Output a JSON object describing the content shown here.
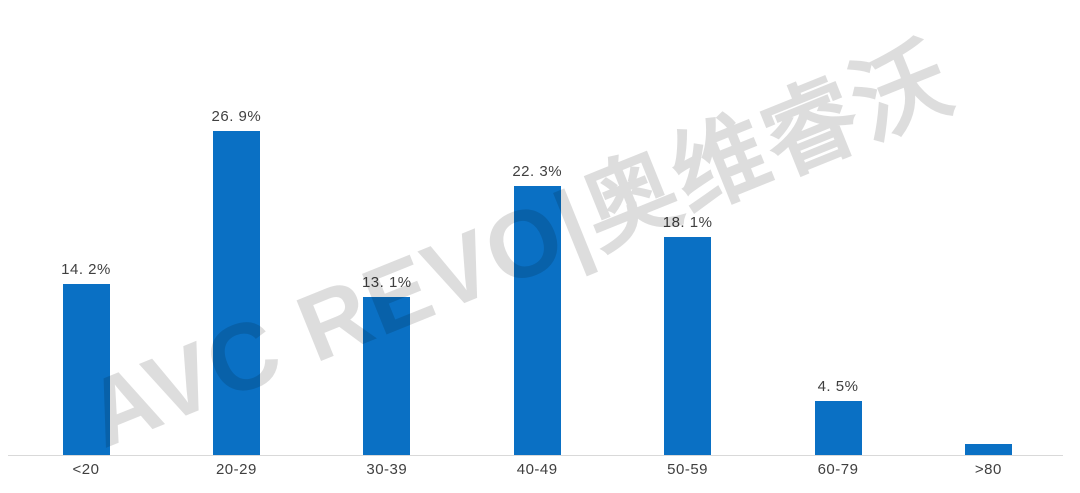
{
  "chart_data": {
    "type": "bar",
    "categories": [
      "<20",
      "20-29",
      "30-39",
      "40-49",
      "50-59",
      "60-79",
      ">80"
    ],
    "values": [
      14.2,
      26.9,
      13.1,
      22.3,
      18.1,
      4.5,
      0.9
    ],
    "value_labels": [
      "14. 2%",
      "26. 9%",
      "13. 1%",
      "22. 3%",
      "18. 1%",
      "4. 5%",
      ""
    ],
    "title": "",
    "xlabel": "",
    "ylabel": "",
    "ylim": [
      0,
      30
    ],
    "grid": false,
    "legend": null,
    "bar_color": "#0a70c4",
    "label_color": "#404040",
    "axis_line_color": "#d9d9d9"
  },
  "watermark": {
    "text": "AVC REVO|奥维睿沃"
  }
}
